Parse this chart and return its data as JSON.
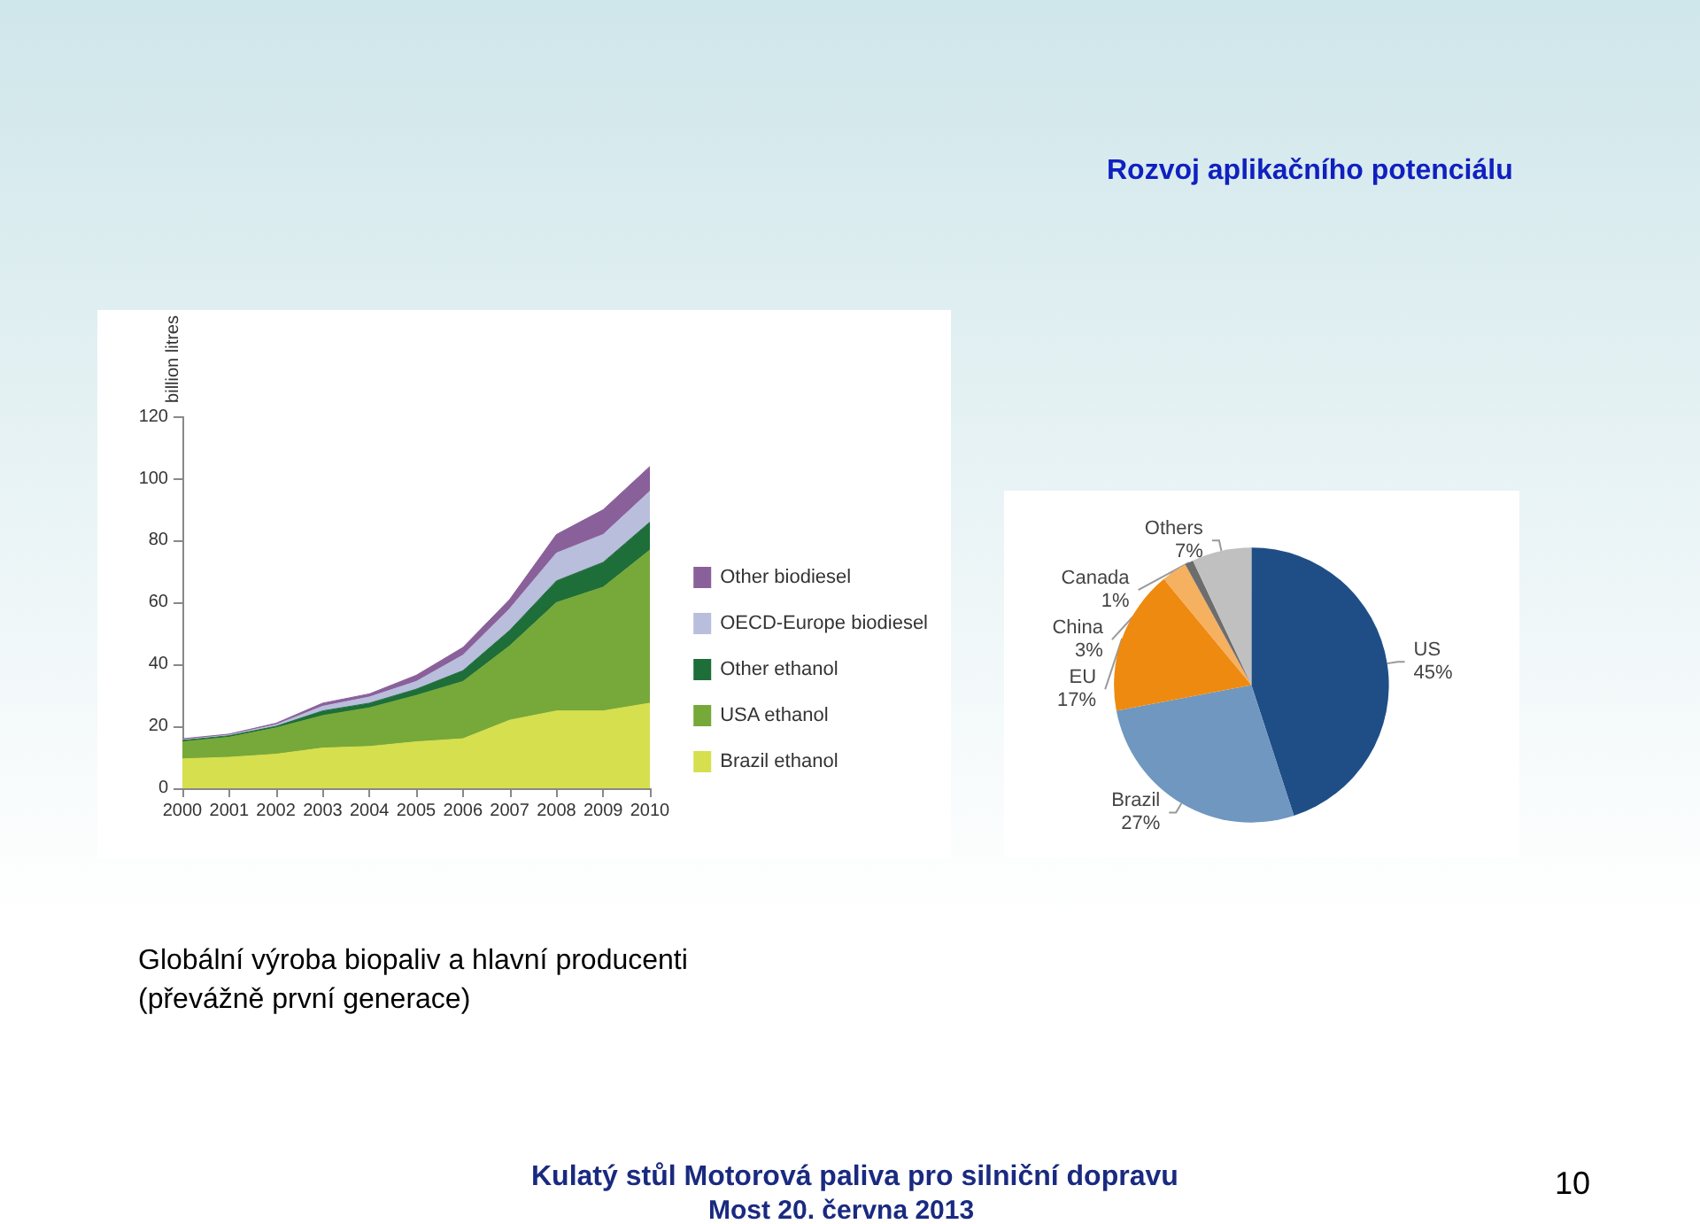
{
  "chart_data": [
    {
      "type": "area",
      "stacked": true,
      "ylabel": "billion litres",
      "categories": [
        "2000",
        "2001",
        "2002",
        "2003",
        "2004",
        "2005",
        "2006",
        "2007",
        "2008",
        "2009",
        "2010"
      ],
      "series": [
        {
          "name": "Brazil ethanol",
          "color": "#d6df4e",
          "values": [
            9.5,
            10,
            11,
            13,
            13.5,
            15,
            16,
            22,
            25,
            25,
            27.5
          ]
        },
        {
          "name": "USA ethanol",
          "color": "#77a83a",
          "values": [
            5.5,
            6.5,
            8.5,
            10.5,
            12.5,
            15,
            18.5,
            24,
            35,
            40,
            49.5
          ]
        },
        {
          "name": "Other ethanol",
          "color": "#1e6e3a",
          "values": [
            0.5,
            0.5,
            0.5,
            1.5,
            1.5,
            2,
            3.5,
            5,
            7,
            8,
            9
          ]
        },
        {
          "name": "OECD-Europe biodiesel",
          "color": "#b8bedb",
          "values": [
            0.3,
            0.3,
            0.5,
            1.5,
            2,
            2.5,
            5,
            7,
            9,
            9,
            10
          ]
        },
        {
          "name": "Other biodiesel",
          "color": "#8a609a",
          "values": [
            0.2,
            0.2,
            0.5,
            1,
            1,
            2,
            2.5,
            3,
            6,
            8,
            8
          ]
        }
      ],
      "ylim": [
        0,
        120
      ],
      "yticks": [
        0,
        20,
        40,
        60,
        80,
        100,
        120
      ],
      "grid": false,
      "legend": "right",
      "annotations": [
        "Rozvoj aplikačního potenciálu",
        "Globální výroba biopaliv a hlavní producenti (převážně první generace)",
        "Kulatý stůl Motorová paliva pro silniční dopravu",
        "Most 20. června 2013",
        "10"
      ]
    },
    {
      "type": "pie",
      "categories": [
        "US",
        "Brazil",
        "EU",
        "China",
        "Canada",
        "Others"
      ],
      "values": [
        45,
        27,
        17,
        3,
        1,
        7
      ],
      "colors": [
        "#1f4e87",
        "#6f97c0",
        "#ee8a10",
        "#f5b060",
        "#6d6d6d",
        "#c0c0c0"
      ],
      "value_labels": [
        "45%",
        "27%",
        "17%",
        "3%",
        "1%",
        "7%"
      ],
      "legend": false
    }
  ]
}
